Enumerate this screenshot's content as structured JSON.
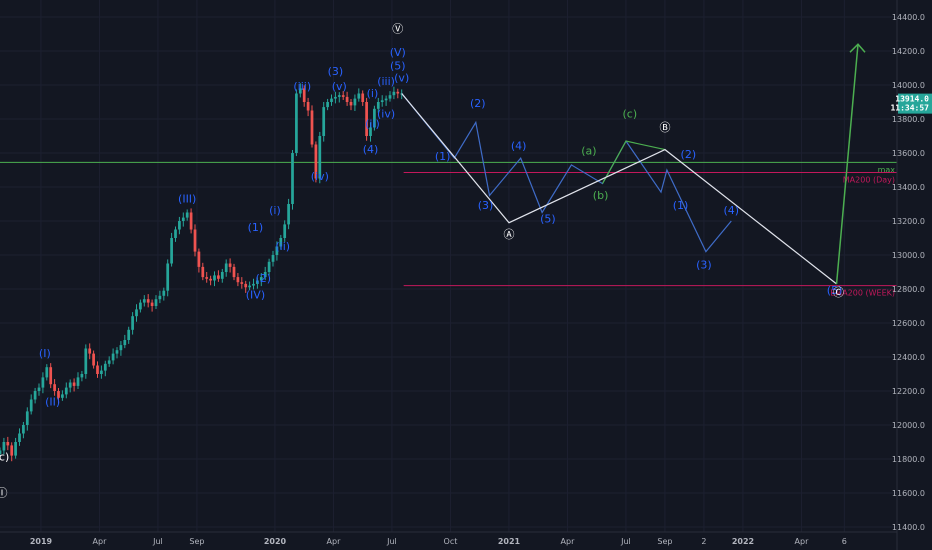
{
  "chart_data": {
    "type": "candlestick",
    "y_axis": {
      "min": 11400,
      "max": 14400,
      "ticks": [
        "11400.0",
        "11600.0",
        "11800.0",
        "12000.0",
        "12200.0",
        "12400.0",
        "12600.0",
        "12800.0",
        "13000.0",
        "13200.0",
        "13400.0",
        "13600.0",
        "13800.0",
        "14000.0",
        "14200.0",
        "14400.0"
      ]
    },
    "x_axis": {
      "ticks": [
        {
          "label": "2019",
          "x": 0.0
        },
        {
          "label": "Apr",
          "x": 3.0
        },
        {
          "label": "Jul",
          "x": 6.0
        },
        {
          "label": "Sep",
          "x": 8.0
        },
        {
          "label": "2020",
          "x": 12.0
        },
        {
          "label": "Apr",
          "x": 15.0
        },
        {
          "label": "Jul",
          "x": 18.0
        },
        {
          "label": "Oct",
          "x": 21.0
        },
        {
          "label": "2021",
          "x": 24.0
        },
        {
          "label": "Apr",
          "x": 27.0
        },
        {
          "label": "Jul",
          "x": 30.0
        },
        {
          "label": "Sep",
          "x": 32.0
        },
        {
          "label": "2",
          "x": 34.0
        },
        {
          "label": "2022",
          "x": 36.0
        },
        {
          "label": "Apr",
          "x": 39.0
        },
        {
          "label": "6",
          "x": 41.2
        }
      ],
      "range": [
        -2.1,
        43.9
      ]
    },
    "candles": [
      [
        -2.1,
        11850
      ],
      [
        -1.9,
        11900
      ],
      [
        -1.7,
        11880
      ],
      [
        -1.5,
        11820
      ],
      [
        -1.3,
        11900
      ],
      [
        -1.1,
        11950
      ],
      [
        -0.9,
        12000
      ],
      [
        -0.7,
        12080
      ],
      [
        -0.5,
        12150
      ],
      [
        -0.3,
        12200
      ],
      [
        -0.1,
        12220
      ],
      [
        0.1,
        12280
      ],
      [
        0.3,
        12340
      ],
      [
        0.5,
        12240
      ],
      [
        0.7,
        12200
      ],
      [
        0.9,
        12160
      ],
      [
        1.1,
        12180
      ],
      [
        1.3,
        12220
      ],
      [
        1.5,
        12250
      ],
      [
        1.7,
        12230
      ],
      [
        1.9,
        12280
      ],
      [
        2.1,
        12300
      ],
      [
        2.3,
        12450
      ],
      [
        2.5,
        12420
      ],
      [
        2.7,
        12350
      ],
      [
        2.9,
        12300
      ],
      [
        3.1,
        12320
      ],
      [
        3.3,
        12360
      ],
      [
        3.5,
        12380
      ],
      [
        3.7,
        12420
      ],
      [
        3.9,
        12440
      ],
      [
        4.1,
        12470
      ],
      [
        4.3,
        12500
      ],
      [
        4.5,
        12560
      ],
      [
        4.7,
        12640
      ],
      [
        4.9,
        12680
      ],
      [
        5.1,
        12720
      ],
      [
        5.3,
        12740
      ],
      [
        5.5,
        12720
      ],
      [
        5.7,
        12700
      ],
      [
        5.9,
        12740
      ],
      [
        6.1,
        12760
      ],
      [
        6.3,
        12790
      ],
      [
        6.5,
        12950
      ],
      [
        6.7,
        13100
      ],
      [
        6.9,
        13150
      ],
      [
        7.1,
        13200
      ],
      [
        7.3,
        13220
      ],
      [
        7.5,
        13250
      ],
      [
        7.7,
        13150
      ],
      [
        7.9,
        13020
      ],
      [
        8.1,
        12930
      ],
      [
        8.3,
        12870
      ],
      [
        8.5,
        12860
      ],
      [
        8.7,
        12850
      ],
      [
        8.9,
        12880
      ],
      [
        9.1,
        12860
      ],
      [
        9.3,
        12900
      ],
      [
        9.5,
        12950
      ],
      [
        9.7,
        12930
      ],
      [
        9.9,
        12870
      ],
      [
        10.1,
        12840
      ],
      [
        10.3,
        12830
      ],
      [
        10.5,
        12810
      ],
      [
        10.7,
        12820
      ],
      [
        10.9,
        12830
      ],
      [
        11.1,
        12850
      ],
      [
        11.3,
        12870
      ],
      [
        11.5,
        12900
      ],
      [
        11.7,
        12960
      ],
      [
        11.9,
        13000
      ],
      [
        12.1,
        13050
      ],
      [
        12.3,
        13100
      ],
      [
        12.5,
        13180
      ],
      [
        12.7,
        13300
      ],
      [
        12.9,
        13600
      ],
      [
        13.1,
        13950
      ],
      [
        13.3,
        13980
      ],
      [
        13.5,
        13900
      ],
      [
        13.7,
        13850
      ],
      [
        13.9,
        13650
      ],
      [
        14.1,
        13450
      ],
      [
        14.3,
        13700
      ],
      [
        14.5,
        13870
      ],
      [
        14.7,
        13900
      ],
      [
        14.9,
        13920
      ],
      [
        15.1,
        13930
      ],
      [
        15.3,
        13940
      ],
      [
        15.5,
        13930
      ],
      [
        15.7,
        13900
      ],
      [
        15.9,
        13880
      ],
      [
        16.1,
        13920
      ],
      [
        16.3,
        13950
      ],
      [
        16.5,
        13900
      ],
      [
        16.7,
        13700
      ],
      [
        16.9,
        13750
      ],
      [
        17.1,
        13860
      ],
      [
        17.3,
        13900
      ],
      [
        17.5,
        13910
      ],
      [
        17.7,
        13920
      ],
      [
        17.9,
        13940
      ],
      [
        18.1,
        13960
      ],
      [
        18.3,
        13950
      ],
      [
        18.5,
        13950
      ]
    ],
    "projection_white": [
      [
        18.5,
        13950
      ],
      [
        24.0,
        13190
      ],
      [
        32.0,
        13620
      ],
      [
        40.8,
        12830
      ],
      [
        41.9,
        14240
      ]
    ],
    "projection_blue": [
      [
        18.5,
        13950
      ],
      [
        21.2,
        13570
      ],
      [
        22.3,
        13780
      ],
      [
        23.0,
        13350
      ],
      [
        24.6,
        13570
      ],
      [
        25.7,
        13250
      ],
      [
        27.2,
        13530
      ],
      [
        28.8,
        13420
      ],
      [
        30.0,
        13670
      ],
      [
        31.8,
        13370
      ],
      [
        32.1,
        13500
      ],
      [
        34.1,
        13020
      ],
      [
        35.4,
        13200
      ]
    ],
    "projection_green": [
      [
        28.8,
        13420
      ],
      [
        30.0,
        13670
      ],
      [
        32.0,
        13620
      ]
    ],
    "levels": [
      {
        "name": "max",
        "value": 13545,
        "color": "#4caf50"
      },
      {
        "name": "MA200 (Day)",
        "value": 13485,
        "color": "#c2185b"
      },
      {
        "name": "EMA200 (WEEK)",
        "value": 12820,
        "color": "#c2185b"
      }
    ],
    "current_price": {
      "value": 13914,
      "label": "13914.0",
      "time": "11:34:57"
    },
    "labels": [
      {
        "text": "(c)",
        "x": -2.0,
        "y": 11790,
        "color": "#ffffff"
      },
      {
        "text": "Ⓘ",
        "x": -2.0,
        "y": 11580,
        "color": "#ffffff"
      },
      {
        "text": "(I)",
        "x": 0.2,
        "y": 12400,
        "color": "#2962ff"
      },
      {
        "text": "(II)",
        "x": 0.6,
        "y": 12115,
        "color": "#2962ff"
      },
      {
        "text": "(III)",
        "x": 7.5,
        "y": 13310,
        "color": "#2962ff"
      },
      {
        "text": "(IV)",
        "x": 11.0,
        "y": 12745,
        "color": "#2962ff"
      },
      {
        "text": "(1)",
        "x": 11.0,
        "y": 13140,
        "color": "#2962ff"
      },
      {
        "text": "(2)",
        "x": 11.4,
        "y": 12840,
        "color": "#2962ff"
      },
      {
        "text": "(i)",
        "x": 12.0,
        "y": 13240,
        "color": "#2962ff"
      },
      {
        "text": "(ii)",
        "x": 12.4,
        "y": 13030,
        "color": "#2962ff"
      },
      {
        "text": "(iii)",
        "x": 13.4,
        "y": 13970,
        "color": "#2962ff"
      },
      {
        "text": "(iv)",
        "x": 14.3,
        "y": 13440,
        "color": "#2962ff"
      },
      {
        "text": "(3)",
        "x": 15.1,
        "y": 14060,
        "color": "#2962ff"
      },
      {
        "text": "(v)",
        "x": 15.3,
        "y": 13970,
        "color": "#2962ff"
      },
      {
        "text": "(i)",
        "x": 17.0,
        "y": 13930,
        "color": "#2962ff"
      },
      {
        "text": "(ii)",
        "x": 17.0,
        "y": 13750,
        "color": "#2962ff"
      },
      {
        "text": "(iv)",
        "x": 17.7,
        "y": 13810,
        "color": "#2962ff"
      },
      {
        "text": "(4)",
        "x": 16.9,
        "y": 13600,
        "color": "#2962ff"
      },
      {
        "text": "(iii)",
        "x": 17.7,
        "y": 14000,
        "color": "#2962ff"
      },
      {
        "text": "(v)",
        "x": 18.5,
        "y": 14020,
        "color": "#2962ff"
      },
      {
        "text": "(5)",
        "x": 18.3,
        "y": 14090,
        "color": "#2962ff"
      },
      {
        "text": "(V)",
        "x": 18.3,
        "y": 14170,
        "color": "#2962ff"
      },
      {
        "text": "Ⓥ",
        "x": 18.3,
        "y": 14310,
        "color": "#ffffff"
      },
      {
        "text": "(1)",
        "x": 20.6,
        "y": 13560,
        "color": "#2962ff"
      },
      {
        "text": "(2)",
        "x": 22.4,
        "y": 13870,
        "color": "#2962ff"
      },
      {
        "text": "(3)",
        "x": 22.8,
        "y": 13270,
        "color": "#2962ff"
      },
      {
        "text": "(4)",
        "x": 24.5,
        "y": 13620,
        "color": "#2962ff"
      },
      {
        "text": "(5)",
        "x": 26.0,
        "y": 13190,
        "color": "#2962ff"
      },
      {
        "text": "Ⓐ",
        "x": 24.0,
        "y": 13100,
        "color": "#ffffff"
      },
      {
        "text": "(a)",
        "x": 28.1,
        "y": 13590,
        "color": "#4caf50"
      },
      {
        "text": "(b)",
        "x": 28.7,
        "y": 13330,
        "color": "#4caf50"
      },
      {
        "text": "(c)",
        "x": 30.2,
        "y": 13810,
        "color": "#4caf50"
      },
      {
        "text": "Ⓑ",
        "x": 32.0,
        "y": 13730,
        "color": "#ffffff"
      },
      {
        "text": "(2)",
        "x": 33.2,
        "y": 13570,
        "color": "#2962ff"
      },
      {
        "text": "(1)",
        "x": 32.8,
        "y": 13270,
        "color": "#2962ff"
      },
      {
        "text": "(4)",
        "x": 35.4,
        "y": 13240,
        "color": "#2962ff"
      },
      {
        "text": "(3)",
        "x": 34.0,
        "y": 12920,
        "color": "#2962ff"
      },
      {
        "text": "(5)",
        "x": 40.7,
        "y": 12770,
        "color": "#2962ff"
      },
      {
        "text": "Ⓒ",
        "x": 40.9,
        "y": 12760,
        "color": "#ffffff"
      }
    ]
  }
}
